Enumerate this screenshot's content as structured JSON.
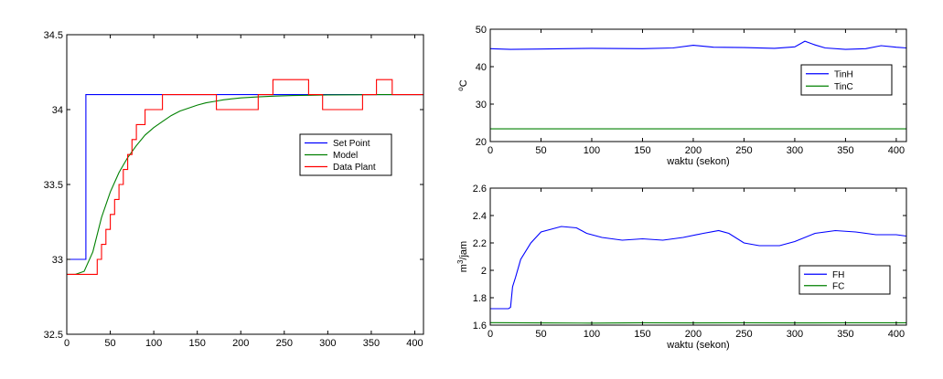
{
  "chart_data": [
    {
      "type": "line",
      "title": "",
      "xlabel": "",
      "ylabel": "",
      "xlim": [
        0,
        410
      ],
      "ylim": [
        32.5,
        34.5
      ],
      "xticks": [
        0,
        50,
        100,
        150,
        200,
        250,
        300,
        350,
        400
      ],
      "yticks": [
        32.5,
        33,
        33.5,
        34,
        34.5
      ],
      "xtick_labels": [
        "0",
        "50",
        "100",
        "150",
        "200",
        "250",
        "300",
        "350",
        "400"
      ],
      "ytick_labels": [
        "32.5",
        "33",
        "33.5",
        "34",
        "34.5"
      ],
      "grid": false,
      "legend_position": "right",
      "series": [
        {
          "name": "Set Point",
          "color": "#0000ff",
          "style": "step",
          "points": [
            [
              0,
              33.0
            ],
            [
              22,
              33.0
            ],
            [
              22,
              34.1
            ],
            [
              410,
              34.1
            ]
          ]
        },
        {
          "name": "Model",
          "color": "#008000",
          "style": "line",
          "points": [
            [
              0,
              32.9
            ],
            [
              10,
              32.9
            ],
            [
              20,
              32.92
            ],
            [
              30,
              33.05
            ],
            [
              40,
              33.28
            ],
            [
              50,
              33.45
            ],
            [
              60,
              33.58
            ],
            [
              70,
              33.68
            ],
            [
              80,
              33.76
            ],
            [
              90,
              33.83
            ],
            [
              100,
              33.88
            ],
            [
              110,
              33.92
            ],
            [
              120,
              33.96
            ],
            [
              130,
              33.99
            ],
            [
              140,
              34.01
            ],
            [
              150,
              34.03
            ],
            [
              160,
              34.045
            ],
            [
              170,
              34.055
            ],
            [
              180,
              34.065
            ],
            [
              190,
              34.072
            ],
            [
              200,
              34.078
            ],
            [
              220,
              34.085
            ],
            [
              240,
              34.09
            ],
            [
              260,
              34.094
            ],
            [
              280,
              34.096
            ],
            [
              300,
              34.098
            ],
            [
              330,
              34.099
            ],
            [
              360,
              34.1
            ],
            [
              410,
              34.1
            ]
          ]
        },
        {
          "name": "Data Plant",
          "color": "#ff0000",
          "style": "step",
          "points": [
            [
              0,
              32.9
            ],
            [
              35,
              32.9
            ],
            [
              35,
              33.0
            ],
            [
              40,
              33.0
            ],
            [
              40,
              33.1
            ],
            [
              45,
              33.1
            ],
            [
              45,
              33.2
            ],
            [
              50,
              33.2
            ],
            [
              50,
              33.3
            ],
            [
              55,
              33.3
            ],
            [
              55,
              33.4
            ],
            [
              60,
              33.4
            ],
            [
              60,
              33.5
            ],
            [
              65,
              33.5
            ],
            [
              65,
              33.6
            ],
            [
              70,
              33.6
            ],
            [
              70,
              33.7
            ],
            [
              75,
              33.7
            ],
            [
              75,
              33.8
            ],
            [
              80,
              33.8
            ],
            [
              80,
              33.9
            ],
            [
              90,
              33.9
            ],
            [
              90,
              34.0
            ],
            [
              110,
              34.0
            ],
            [
              110,
              34.1
            ],
            [
              172,
              34.1
            ],
            [
              172,
              34.0
            ],
            [
              220,
              34.0
            ],
            [
              220,
              34.1
            ],
            [
              237,
              34.1
            ],
            [
              237,
              34.2
            ],
            [
              278,
              34.2
            ],
            [
              278,
              34.1
            ],
            [
              294,
              34.1
            ],
            [
              294,
              34.0
            ],
            [
              340,
              34.0
            ],
            [
              340,
              34.1
            ],
            [
              356,
              34.1
            ],
            [
              356,
              34.2
            ],
            [
              374,
              34.2
            ],
            [
              374,
              34.1
            ],
            [
              410,
              34.1
            ]
          ]
        }
      ]
    },
    {
      "type": "line",
      "title": "",
      "xlabel": "waktu (sekon)",
      "ylabel": "oC",
      "ylabel_sup": "o",
      "ylabel_main": "C",
      "xlim": [
        0,
        410
      ],
      "ylim": [
        20,
        50
      ],
      "xticks": [
        0,
        50,
        100,
        150,
        200,
        250,
        300,
        350,
        400
      ],
      "yticks": [
        20,
        30,
        40,
        50
      ],
      "xtick_labels": [
        "0",
        "50",
        "100",
        "150",
        "200",
        "250",
        "300",
        "350",
        "400"
      ],
      "ytick_labels": [
        "20",
        "30",
        "40",
        "50"
      ],
      "grid": false,
      "legend_position": "top-right",
      "series": [
        {
          "name": "TinH",
          "color": "#0000ff",
          "style": "line",
          "points": [
            [
              0,
              44.8
            ],
            [
              20,
              44.6
            ],
            [
              50,
              44.7
            ],
            [
              100,
              44.9
            ],
            [
              150,
              44.8
            ],
            [
              180,
              45.0
            ],
            [
              200,
              45.7
            ],
            [
              220,
              45.2
            ],
            [
              250,
              45.1
            ],
            [
              280,
              44.9
            ],
            [
              300,
              45.3
            ],
            [
              310,
              46.8
            ],
            [
              320,
              45.8
            ],
            [
              330,
              45.0
            ],
            [
              350,
              44.6
            ],
            [
              370,
              44.8
            ],
            [
              385,
              45.6
            ],
            [
              400,
              45.2
            ],
            [
              410,
              45.0
            ]
          ]
        },
        {
          "name": "TinC",
          "color": "#008000",
          "style": "line",
          "points": [
            [
              0,
              23.4
            ],
            [
              100,
              23.4
            ],
            [
              200,
              23.4
            ],
            [
              300,
              23.4
            ],
            [
              410,
              23.4
            ]
          ]
        }
      ]
    },
    {
      "type": "line",
      "title": "",
      "xlabel": "waktu (sekon)",
      "ylabel": "m3/jam",
      "ylabel_pre": "m",
      "ylabel_sup": "3",
      "ylabel_post": "/jam",
      "xlim": [
        0,
        410
      ],
      "ylim": [
        1.6,
        2.6
      ],
      "xticks": [
        0,
        50,
        100,
        150,
        200,
        250,
        300,
        350,
        400
      ],
      "yticks": [
        1.6,
        1.8,
        2,
        2.2,
        2.4,
        2.6
      ],
      "xtick_labels": [
        "0",
        "50",
        "100",
        "150",
        "200",
        "250",
        "300",
        "350",
        "400"
      ],
      "ytick_labels": [
        "1.6",
        "1.8",
        "2",
        "2.2",
        "2.4",
        "2.6"
      ],
      "grid": false,
      "legend_position": "bottom-right",
      "series": [
        {
          "name": "FH",
          "color": "#0000ff",
          "style": "line",
          "points": [
            [
              0,
              1.72
            ],
            [
              18,
              1.72
            ],
            [
              20,
              1.73
            ],
            [
              22,
              1.88
            ],
            [
              25,
              1.95
            ],
            [
              30,
              2.08
            ],
            [
              40,
              2.2
            ],
            [
              50,
              2.28
            ],
            [
              60,
              2.3
            ],
            [
              70,
              2.32
            ],
            [
              85,
              2.31
            ],
            [
              95,
              2.27
            ],
            [
              110,
              2.24
            ],
            [
              130,
              2.22
            ],
            [
              150,
              2.23
            ],
            [
              170,
              2.22
            ],
            [
              190,
              2.24
            ],
            [
              210,
              2.27
            ],
            [
              225,
              2.29
            ],
            [
              235,
              2.27
            ],
            [
              250,
              2.2
            ],
            [
              265,
              2.18
            ],
            [
              285,
              2.18
            ],
            [
              300,
              2.21
            ],
            [
              320,
              2.27
            ],
            [
              340,
              2.29
            ],
            [
              360,
              2.28
            ],
            [
              380,
              2.26
            ],
            [
              400,
              2.26
            ],
            [
              410,
              2.25
            ]
          ]
        },
        {
          "name": "FC",
          "color": "#008000",
          "style": "line",
          "points": [
            [
              0,
              1.618
            ],
            [
              50,
              1.616
            ],
            [
              100,
              1.615
            ],
            [
              150,
              1.617
            ],
            [
              200,
              1.616
            ],
            [
              250,
              1.617
            ],
            [
              300,
              1.616
            ],
            [
              350,
              1.617
            ],
            [
              410,
              1.617
            ]
          ]
        }
      ]
    }
  ]
}
